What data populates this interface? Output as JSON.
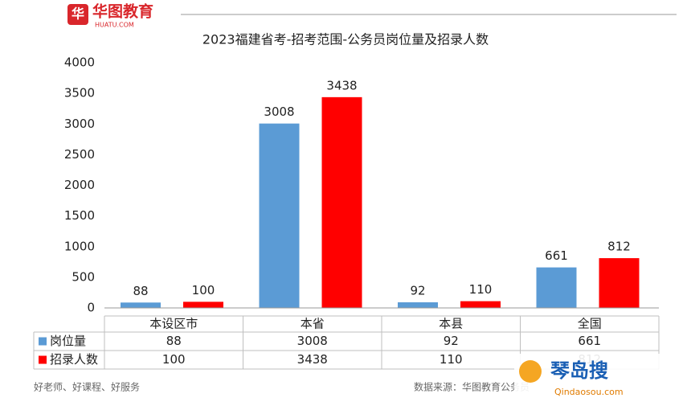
{
  "brand": {
    "name": "华图教育",
    "site": "HUATU.COM"
  },
  "chart_data": {
    "type": "bar",
    "title": "2023福建省考-招考范围-公务员岗位量及招录人数",
    "categories": [
      "本设区市",
      "本省",
      "本县",
      "全国"
    ],
    "series": [
      {
        "name": "岗位量",
        "color": "#5b9bd5",
        "values": [
          88,
          3008,
          92,
          661
        ]
      },
      {
        "name": "招录人数",
        "color": "#ff0000",
        "values": [
          100,
          3438,
          110,
          812
        ]
      }
    ],
    "ylim": [
      0,
      4000
    ],
    "yticks": [
      0,
      500,
      1000,
      1500,
      2000,
      2500,
      3000,
      3500,
      4000
    ],
    "grid": false
  },
  "footer": {
    "slogan": "好老师、好课程、好服务",
    "source": "数据来源：华图教育公务员"
  },
  "watermark": {
    "name": "琴岛搜",
    "site": "Qindaosou.com"
  }
}
